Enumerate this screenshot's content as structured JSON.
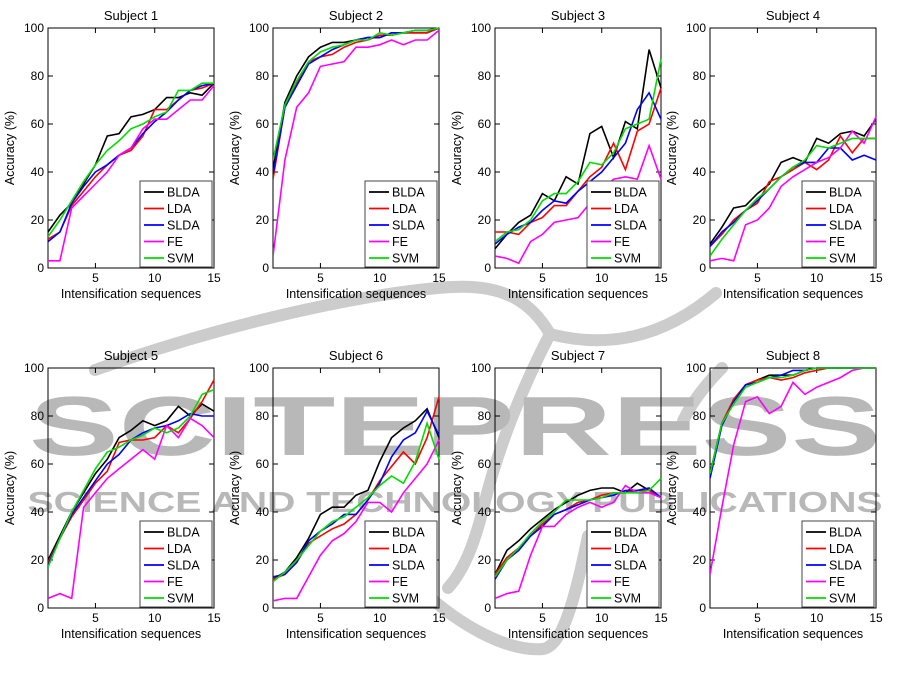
{
  "watermark": {
    "line1": "SCITEPRESS",
    "line2": "SCIENCE AND TECHNOLOGY PUBLICATIONS",
    "text_color": "#b8b8b8",
    "swoosh_color": "#cccccc"
  },
  "axes": {
    "xlabel": "Intensification sequences",
    "ylabel": "Accuracy (%)",
    "xticks": [
      5,
      10,
      15
    ],
    "yticks": [
      0,
      20,
      40,
      60,
      80,
      100
    ],
    "xlim": [
      1,
      15
    ],
    "ylim": [
      0,
      100
    ],
    "x_values": [
      1,
      2,
      3,
      4,
      5,
      6,
      7,
      8,
      9,
      10,
      11,
      12,
      13,
      14,
      15
    ]
  },
  "legend": {
    "position": "lower-right",
    "entries": [
      {
        "label": "BLDA",
        "color": "#000000"
      },
      {
        "label": "LDA",
        "color": "#ff0000"
      },
      {
        "label": "SLDA",
        "color": "#0000ff"
      },
      {
        "label": "FE",
        "color": "#ff00ff"
      },
      {
        "label": "SVM",
        "color": "#00dd00"
      }
    ]
  },
  "chart_data": [
    {
      "type": "line",
      "title": "Subject 1",
      "xlabel": "Intensification sequences",
      "ylabel": "Accuracy (%)",
      "xlim": [
        1,
        15
      ],
      "ylim": [
        0,
        100
      ],
      "series": [
        {
          "name": "BLDA",
          "color": "#000000",
          "values": [
            15,
            22,
            27,
            35,
            43,
            55,
            56,
            63,
            64,
            66,
            71,
            71,
            73,
            72,
            77
          ]
        },
        {
          "name": "LDA",
          "color": "#ff0000",
          "values": [
            12,
            15,
            26,
            32,
            38,
            43,
            47,
            49,
            55,
            66,
            66,
            70,
            74,
            75,
            77
          ]
        },
        {
          "name": "SLDA",
          "color": "#0000ff",
          "values": [
            11,
            15,
            27,
            34,
            40,
            43,
            47,
            50,
            56,
            61,
            65,
            70,
            74,
            76,
            77
          ]
        },
        {
          "name": "FE",
          "color": "#ff00ff",
          "values": [
            3,
            3,
            25,
            30,
            35,
            40,
            47,
            50,
            58,
            62,
            62,
            66,
            70,
            70,
            76
          ]
        },
        {
          "name": "SVM",
          "color": "#00dd00",
          "values": [
            13,
            20,
            28,
            36,
            43,
            49,
            53,
            58,
            60,
            63,
            65,
            74,
            74,
            77,
            77
          ]
        }
      ]
    },
    {
      "type": "line",
      "title": "Subject 2",
      "xlabel": "Intensification sequences",
      "ylabel": "Accuracy (%)",
      "xlim": [
        1,
        15
      ],
      "ylim": [
        0,
        100
      ],
      "series": [
        {
          "name": "BLDA",
          "color": "#000000",
          "values": [
            41,
            69,
            80,
            88,
            92,
            94,
            94,
            95,
            96,
            96,
            98,
            98,
            98,
            98,
            100
          ]
        },
        {
          "name": "LDA",
          "color": "#ff0000",
          "values": [
            37,
            67,
            77,
            86,
            88,
            89,
            92,
            94,
            95,
            97,
            97,
            98,
            98,
            98,
            100
          ]
        },
        {
          "name": "SLDA",
          "color": "#0000ff",
          "values": [
            39,
            67,
            76,
            85,
            88,
            91,
            93,
            95,
            96,
            96,
            98,
            98,
            99,
            99,
            100
          ]
        },
        {
          "name": "FE",
          "color": "#ff00ff",
          "values": [
            5,
            45,
            67,
            73,
            84,
            85,
            86,
            92,
            92,
            93,
            95,
            93,
            95,
            95,
            99
          ]
        },
        {
          "name": "SVM",
          "color": "#00dd00",
          "values": [
            45,
            68,
            78,
            86,
            90,
            92,
            93,
            95,
            95,
            98,
            97,
            98,
            99,
            99,
            100
          ]
        }
      ]
    },
    {
      "type": "line",
      "title": "Subject 3",
      "xlabel": "Intensification sequences",
      "ylabel": "Accuracy (%)",
      "xlim": [
        1,
        15
      ],
      "ylim": [
        0,
        100
      ],
      "series": [
        {
          "name": "BLDA",
          "color": "#000000",
          "values": [
            8,
            14,
            19,
            22,
            31,
            28,
            38,
            35,
            56,
            59,
            46,
            61,
            58,
            91,
            75
          ]
        },
        {
          "name": "LDA",
          "color": "#ff0000",
          "values": [
            15,
            15,
            14,
            19,
            21,
            26,
            26,
            32,
            38,
            42,
            52,
            41,
            57,
            60,
            75
          ]
        },
        {
          "name": "SLDA",
          "color": "#0000ff",
          "values": [
            10,
            14,
            17,
            19,
            24,
            28,
            27,
            32,
            36,
            40,
            46,
            52,
            66,
            73,
            62
          ]
        },
        {
          "name": "FE",
          "color": "#ff00ff",
          "values": [
            5,
            4,
            2,
            11,
            14,
            19,
            20,
            21,
            27,
            33,
            37,
            38,
            37,
            51,
            37
          ]
        },
        {
          "name": "SVM",
          "color": "#00dd00",
          "values": [
            11,
            15,
            16,
            20,
            28,
            31,
            31,
            36,
            44,
            43,
            48,
            58,
            60,
            62,
            87
          ]
        }
      ]
    },
    {
      "type": "line",
      "title": "Subject 4",
      "xlabel": "Intensification sequences",
      "ylabel": "Accuracy (%)",
      "xlim": [
        1,
        15
      ],
      "ylim": [
        0,
        100
      ],
      "series": [
        {
          "name": "BLDA",
          "color": "#000000",
          "values": [
            10,
            17,
            25,
            26,
            31,
            35,
            44,
            46,
            44,
            54,
            52,
            56,
            57,
            55,
            62
          ]
        },
        {
          "name": "LDA",
          "color": "#ff0000",
          "values": [
            9,
            14,
            20,
            24,
            27,
            36,
            38,
            41,
            44,
            41,
            45,
            55,
            48,
            54,
            54
          ]
        },
        {
          "name": "SLDA",
          "color": "#0000ff",
          "values": [
            9,
            15,
            19,
            24,
            28,
            33,
            38,
            42,
            44,
            44,
            50,
            50,
            45,
            47,
            45
          ]
        },
        {
          "name": "FE",
          "color": "#ff00ff",
          "values": [
            3,
            4,
            3,
            18,
            20,
            25,
            34,
            38,
            41,
            44,
            46,
            50,
            57,
            52,
            63
          ]
        },
        {
          "name": "SVM",
          "color": "#00dd00",
          "values": [
            5,
            12,
            18,
            24,
            29,
            33,
            38,
            42,
            45,
            51,
            50,
            52,
            54,
            54,
            54
          ]
        }
      ]
    },
    {
      "type": "line",
      "title": "Subject 5",
      "xlabel": "Intensification sequences",
      "ylabel": "Accuracy (%)",
      "xlim": [
        1,
        15
      ],
      "ylim": [
        0,
        100
      ],
      "series": [
        {
          "name": "BLDA",
          "color": "#000000",
          "values": [
            20,
            30,
            40,
            48,
            56,
            62,
            71,
            74,
            78,
            76,
            78,
            84,
            80,
            85,
            82
          ]
        },
        {
          "name": "LDA",
          "color": "#ff0000",
          "values": [
            19,
            29,
            38,
            45,
            52,
            57,
            69,
            70,
            70,
            71,
            76,
            73,
            79,
            86,
            95
          ]
        },
        {
          "name": "SLDA",
          "color": "#0000ff",
          "values": [
            18,
            29,
            39,
            46,
            53,
            60,
            64,
            70,
            73,
            75,
            76,
            78,
            81,
            80,
            80
          ]
        },
        {
          "name": "FE",
          "color": "#ff00ff",
          "values": [
            4,
            6,
            4,
            42,
            48,
            54,
            58,
            62,
            66,
            62,
            76,
            71,
            79,
            76,
            71
          ]
        },
        {
          "name": "SVM",
          "color": "#00dd00",
          "values": [
            17,
            29,
            40,
            49,
            58,
            65,
            67,
            70,
            72,
            75,
            73,
            75,
            80,
            89,
            91
          ]
        }
      ]
    },
    {
      "type": "line",
      "title": "Subject 6",
      "xlabel": "Intensification sequences",
      "ylabel": "Accuracy (%)",
      "xlim": [
        1,
        15
      ],
      "ylim": [
        0,
        100
      ],
      "series": [
        {
          "name": "BLDA",
          "color": "#000000",
          "values": [
            12,
            15,
            21,
            29,
            39,
            42,
            42,
            47,
            49,
            61,
            71,
            75,
            78,
            83,
            71
          ]
        },
        {
          "name": "LDA",
          "color": "#ff0000",
          "values": [
            12,
            14,
            19,
            27,
            30,
            33,
            35,
            39,
            45,
            53,
            59,
            65,
            60,
            71,
            88
          ]
        },
        {
          "name": "SLDA",
          "color": "#0000ff",
          "values": [
            13,
            14,
            19,
            28,
            32,
            35,
            39,
            39,
            45,
            52,
            63,
            70,
            73,
            82,
            72
          ]
        },
        {
          "name": "FE",
          "color": "#ff00ff",
          "values": [
            3,
            4,
            4,
            13,
            22,
            28,
            31,
            36,
            44,
            44,
            40,
            48,
            54,
            60,
            70
          ]
        },
        {
          "name": "SVM",
          "color": "#00dd00",
          "values": [
            11,
            15,
            20,
            26,
            32,
            36,
            38,
            42,
            46,
            51,
            55,
            52,
            61,
            77,
            62
          ]
        }
      ]
    },
    {
      "type": "line",
      "title": "Subject 7",
      "xlabel": "Intensification sequences",
      "ylabel": "Accuracy (%)",
      "xlim": [
        1,
        15
      ],
      "ylim": [
        0,
        100
      ],
      "series": [
        {
          "name": "BLDA",
          "color": "#000000",
          "values": [
            14,
            24,
            28,
            33,
            37,
            41,
            44,
            47,
            49,
            50,
            50,
            48,
            52,
            49,
            46
          ]
        },
        {
          "name": "LDA",
          "color": "#ff0000",
          "values": [
            14,
            21,
            25,
            30,
            35,
            39,
            41,
            44,
            45,
            47,
            48,
            48,
            49,
            49,
            46
          ]
        },
        {
          "name": "SLDA",
          "color": "#0000ff",
          "values": [
            12,
            20,
            24,
            30,
            34,
            39,
            41,
            43,
            45,
            46,
            47,
            49,
            49,
            50,
            46
          ]
        },
        {
          "name": "FE",
          "color": "#ff00ff",
          "values": [
            4,
            6,
            7,
            22,
            34,
            34,
            39,
            42,
            44,
            42,
            44,
            51,
            48,
            48,
            46
          ]
        },
        {
          "name": "SVM",
          "color": "#00dd00",
          "values": [
            13,
            20,
            25,
            31,
            36,
            40,
            45,
            45,
            45,
            46,
            48,
            48,
            48,
            49,
            54
          ]
        }
      ]
    },
    {
      "type": "line",
      "title": "Subject 8",
      "xlabel": "Intensification sequences",
      "ylabel": "Accuracy (%)",
      "xlim": [
        1,
        15
      ],
      "ylim": [
        0,
        100
      ],
      "series": [
        {
          "name": "BLDA",
          "color": "#000000",
          "values": [
            56,
            77,
            86,
            93,
            95,
            97,
            97,
            97,
            99,
            100,
            100,
            100,
            100,
            100,
            100
          ]
        },
        {
          "name": "LDA",
          "color": "#ff0000",
          "values": [
            55,
            77,
            87,
            93,
            95,
            96,
            95,
            96,
            98,
            99,
            100,
            100,
            100,
            100,
            100
          ]
        },
        {
          "name": "SLDA",
          "color": "#0000ff",
          "values": [
            54,
            76,
            86,
            93,
            94,
            96,
            97,
            99,
            99,
            100,
            100,
            100,
            100,
            100,
            100
          ]
        },
        {
          "name": "FE",
          "color": "#ff00ff",
          "values": [
            14,
            42,
            68,
            86,
            88,
            81,
            84,
            94,
            89,
            92,
            94,
            96,
            99,
            100,
            100
          ]
        },
        {
          "name": "SVM",
          "color": "#00dd00",
          "values": [
            56,
            77,
            85,
            92,
            94,
            96,
            96,
            97,
            99,
            100,
            100,
            100,
            100,
            100,
            100
          ]
        }
      ]
    }
  ]
}
